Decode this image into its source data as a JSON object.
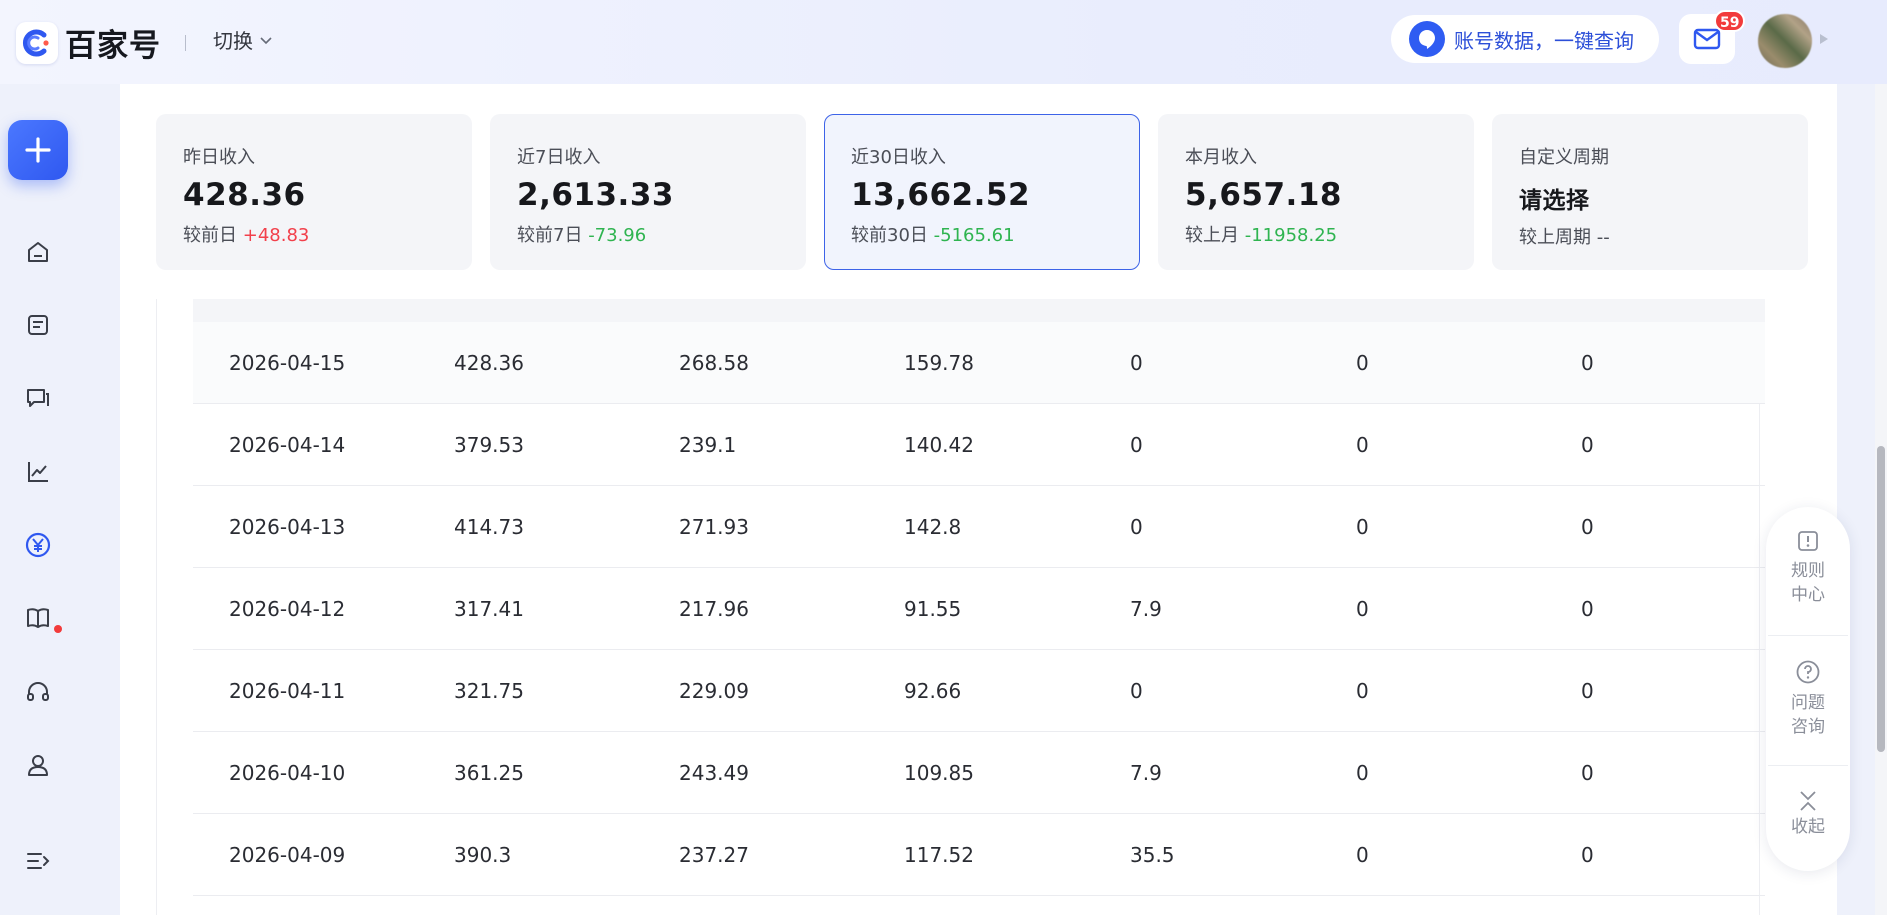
{
  "header": {
    "logo_text": "百家号",
    "switch_label": "切换",
    "query_label": "账号数据，一键查询",
    "mail_badge": "59"
  },
  "sidebar": {
    "items": [
      "home-icon",
      "article-icon",
      "comment-icon",
      "trend-icon",
      "income-icon",
      "book-icon",
      "headset-icon",
      "user-icon",
      "menu-collapse-icon"
    ],
    "active_dot_color": "#f23b3b"
  },
  "cards": [
    {
      "title": "昨日收入",
      "value": "428.36",
      "compare_label": "较前日",
      "compare_value": "+48.83"
    },
    {
      "title": "近7日收入",
      "value": "2,613.33",
      "compare_label": "较前7日",
      "compare_value": "-73.96"
    },
    {
      "title": "近30日收入",
      "value": "13,662.52",
      "compare_label": "较前30日",
      "compare_value": "-5165.61"
    },
    {
      "title": "本月收入",
      "value": "5,657.18",
      "compare_label": "较上月",
      "compare_value": "-11958.25"
    },
    {
      "title": "自定义周期",
      "value": "请选择",
      "compare_label": "较上周期",
      "compare_value": "--"
    }
  ],
  "table": {
    "rows": [
      [
        "2026-04-15",
        "428.36",
        "268.58",
        "159.78",
        "0",
        "0",
        "0"
      ],
      [
        "2026-04-14",
        "379.53",
        "239.1",
        "140.42",
        "0",
        "0",
        "0"
      ],
      [
        "2026-04-13",
        "414.73",
        "271.93",
        "142.8",
        "0",
        "0",
        "0"
      ],
      [
        "2026-04-12",
        "317.41",
        "217.96",
        "91.55",
        "7.9",
        "0",
        "0"
      ],
      [
        "2026-04-11",
        "321.75",
        "229.09",
        "92.66",
        "0",
        "0",
        "0"
      ],
      [
        "2026-04-10",
        "361.25",
        "243.49",
        "109.85",
        "7.9",
        "0",
        "0"
      ],
      [
        "2026-04-09",
        "390.3",
        "237.27",
        "117.52",
        "35.5",
        "0",
        "0"
      ]
    ]
  },
  "float_panel": {
    "rules_label": "规则\n中心",
    "rules_line1": "规则",
    "rules_line2": "中心",
    "help_line1": "问题",
    "help_line2": "咨询",
    "collapse_label": "收起"
  },
  "colors": {
    "accent": "#2f58f0",
    "up": "#f2404b",
    "down": "#2fb450"
  }
}
